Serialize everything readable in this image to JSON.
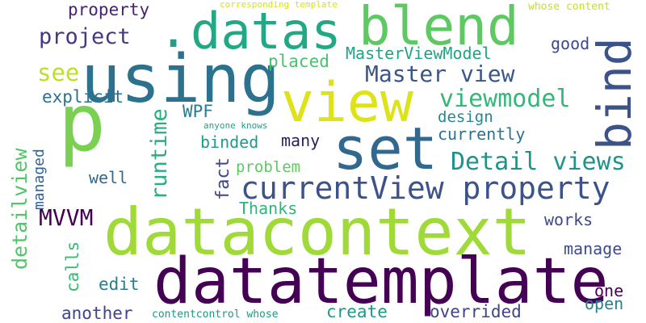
{
  "words": {
    "using": {
      "text": "using",
      "color": "#2c728e"
    },
    "datacontext": {
      "text": "datacontext",
      "color": "#a0da39"
    },
    "datatemplate": {
      "text": "datatemplate",
      "color": "#440154"
    },
    "p": {
      "text": "p",
      "color": "#7ad151"
    },
    "blend": {
      "text": "blend",
      "color": "#5ec962"
    },
    "datas": {
      "text": "datas",
      "color": "#22a884"
    },
    "view": {
      "text": "view",
      "color": "#dde318"
    },
    "set": {
      "text": "set",
      "color": "#31688e"
    },
    "bind": {
      "text": "bind",
      "color": "#3b528b"
    },
    "current_view_property": {
      "text": "currentView property",
      "color": "#3b528b"
    },
    "detail_views": {
      "text": "Detail views",
      "color": "#21918c"
    },
    "master_view": {
      "text": "Master view",
      "color": "#39568c"
    },
    "viewmodel": {
      "text": "viewmodel",
      "color": "#35b779"
    },
    "runtime": {
      "text": "runtime",
      "color": "#29af7f"
    },
    "master_view_model": {
      "text": "MasterViewModel",
      "color": "#20a386"
    },
    "project": {
      "text": "project",
      "color": "#453781"
    },
    "property": {
      "text": "property",
      "color": "#482173"
    },
    "dot": {
      "text": ".",
      "color": "#1f9e89"
    },
    "see": {
      "text": "see",
      "color": "#bddf26"
    },
    "placed": {
      "text": "placed",
      "color": "#4ac16d"
    },
    "explicit": {
      "text": "explicit",
      "color": "#2d708e"
    },
    "good": {
      "text": "good",
      "color": "#3e4a89"
    },
    "wpf": {
      "text": "WPF",
      "color": "#287d8e"
    },
    "design": {
      "text": "design",
      "color": "#23898e"
    },
    "currently": {
      "text": "currently",
      "color": "#2c728e"
    },
    "anyone_knows": {
      "text": "anyone knows",
      "color": "#1fa088"
    },
    "many": {
      "text": "many",
      "color": "#2d1e5e"
    },
    "binded": {
      "text": "binded",
      "color": "#1e9b8a"
    },
    "problem": {
      "text": "problem",
      "color": "#5ec962"
    },
    "fact": {
      "text": "fact",
      "color": "#404688"
    },
    "well": {
      "text": "well",
      "color": "#31688e"
    },
    "detailview": {
      "text": "detailview",
      "color": "#52c569"
    },
    "managed": {
      "text": "managed",
      "color": "#34618d"
    },
    "mvvm": {
      "text": "MVVM",
      "color": "#440154"
    },
    "thanks": {
      "text": "Thanks",
      "color": "#2fb47c"
    },
    "works": {
      "text": "works",
      "color": "#3e4989"
    },
    "calls": {
      "text": "calls",
      "color": "#3aba76"
    },
    "manage": {
      "text": "manage",
      "color": "#3e4c8a"
    },
    "edit": {
      "text": "edit",
      "color": "#287d8e"
    },
    "one": {
      "text": "one",
      "color": "#440154"
    },
    "open": {
      "text": "open",
      "color": "#26828e"
    },
    "another": {
      "text": "another",
      "color": "#414487"
    },
    "contentcontrol_whose": {
      "text": "contentcontrol whose",
      "color": "#1f958b"
    },
    "create": {
      "text": "create",
      "color": "#1f988b"
    },
    "overrided": {
      "text": "overrided",
      "color": "#414487"
    },
    "corresponding_template": {
      "text": "corresponding template",
      "color": "#d8e219"
    },
    "whose_content": {
      "text": "whose content",
      "color": "#c8e020"
    }
  }
}
